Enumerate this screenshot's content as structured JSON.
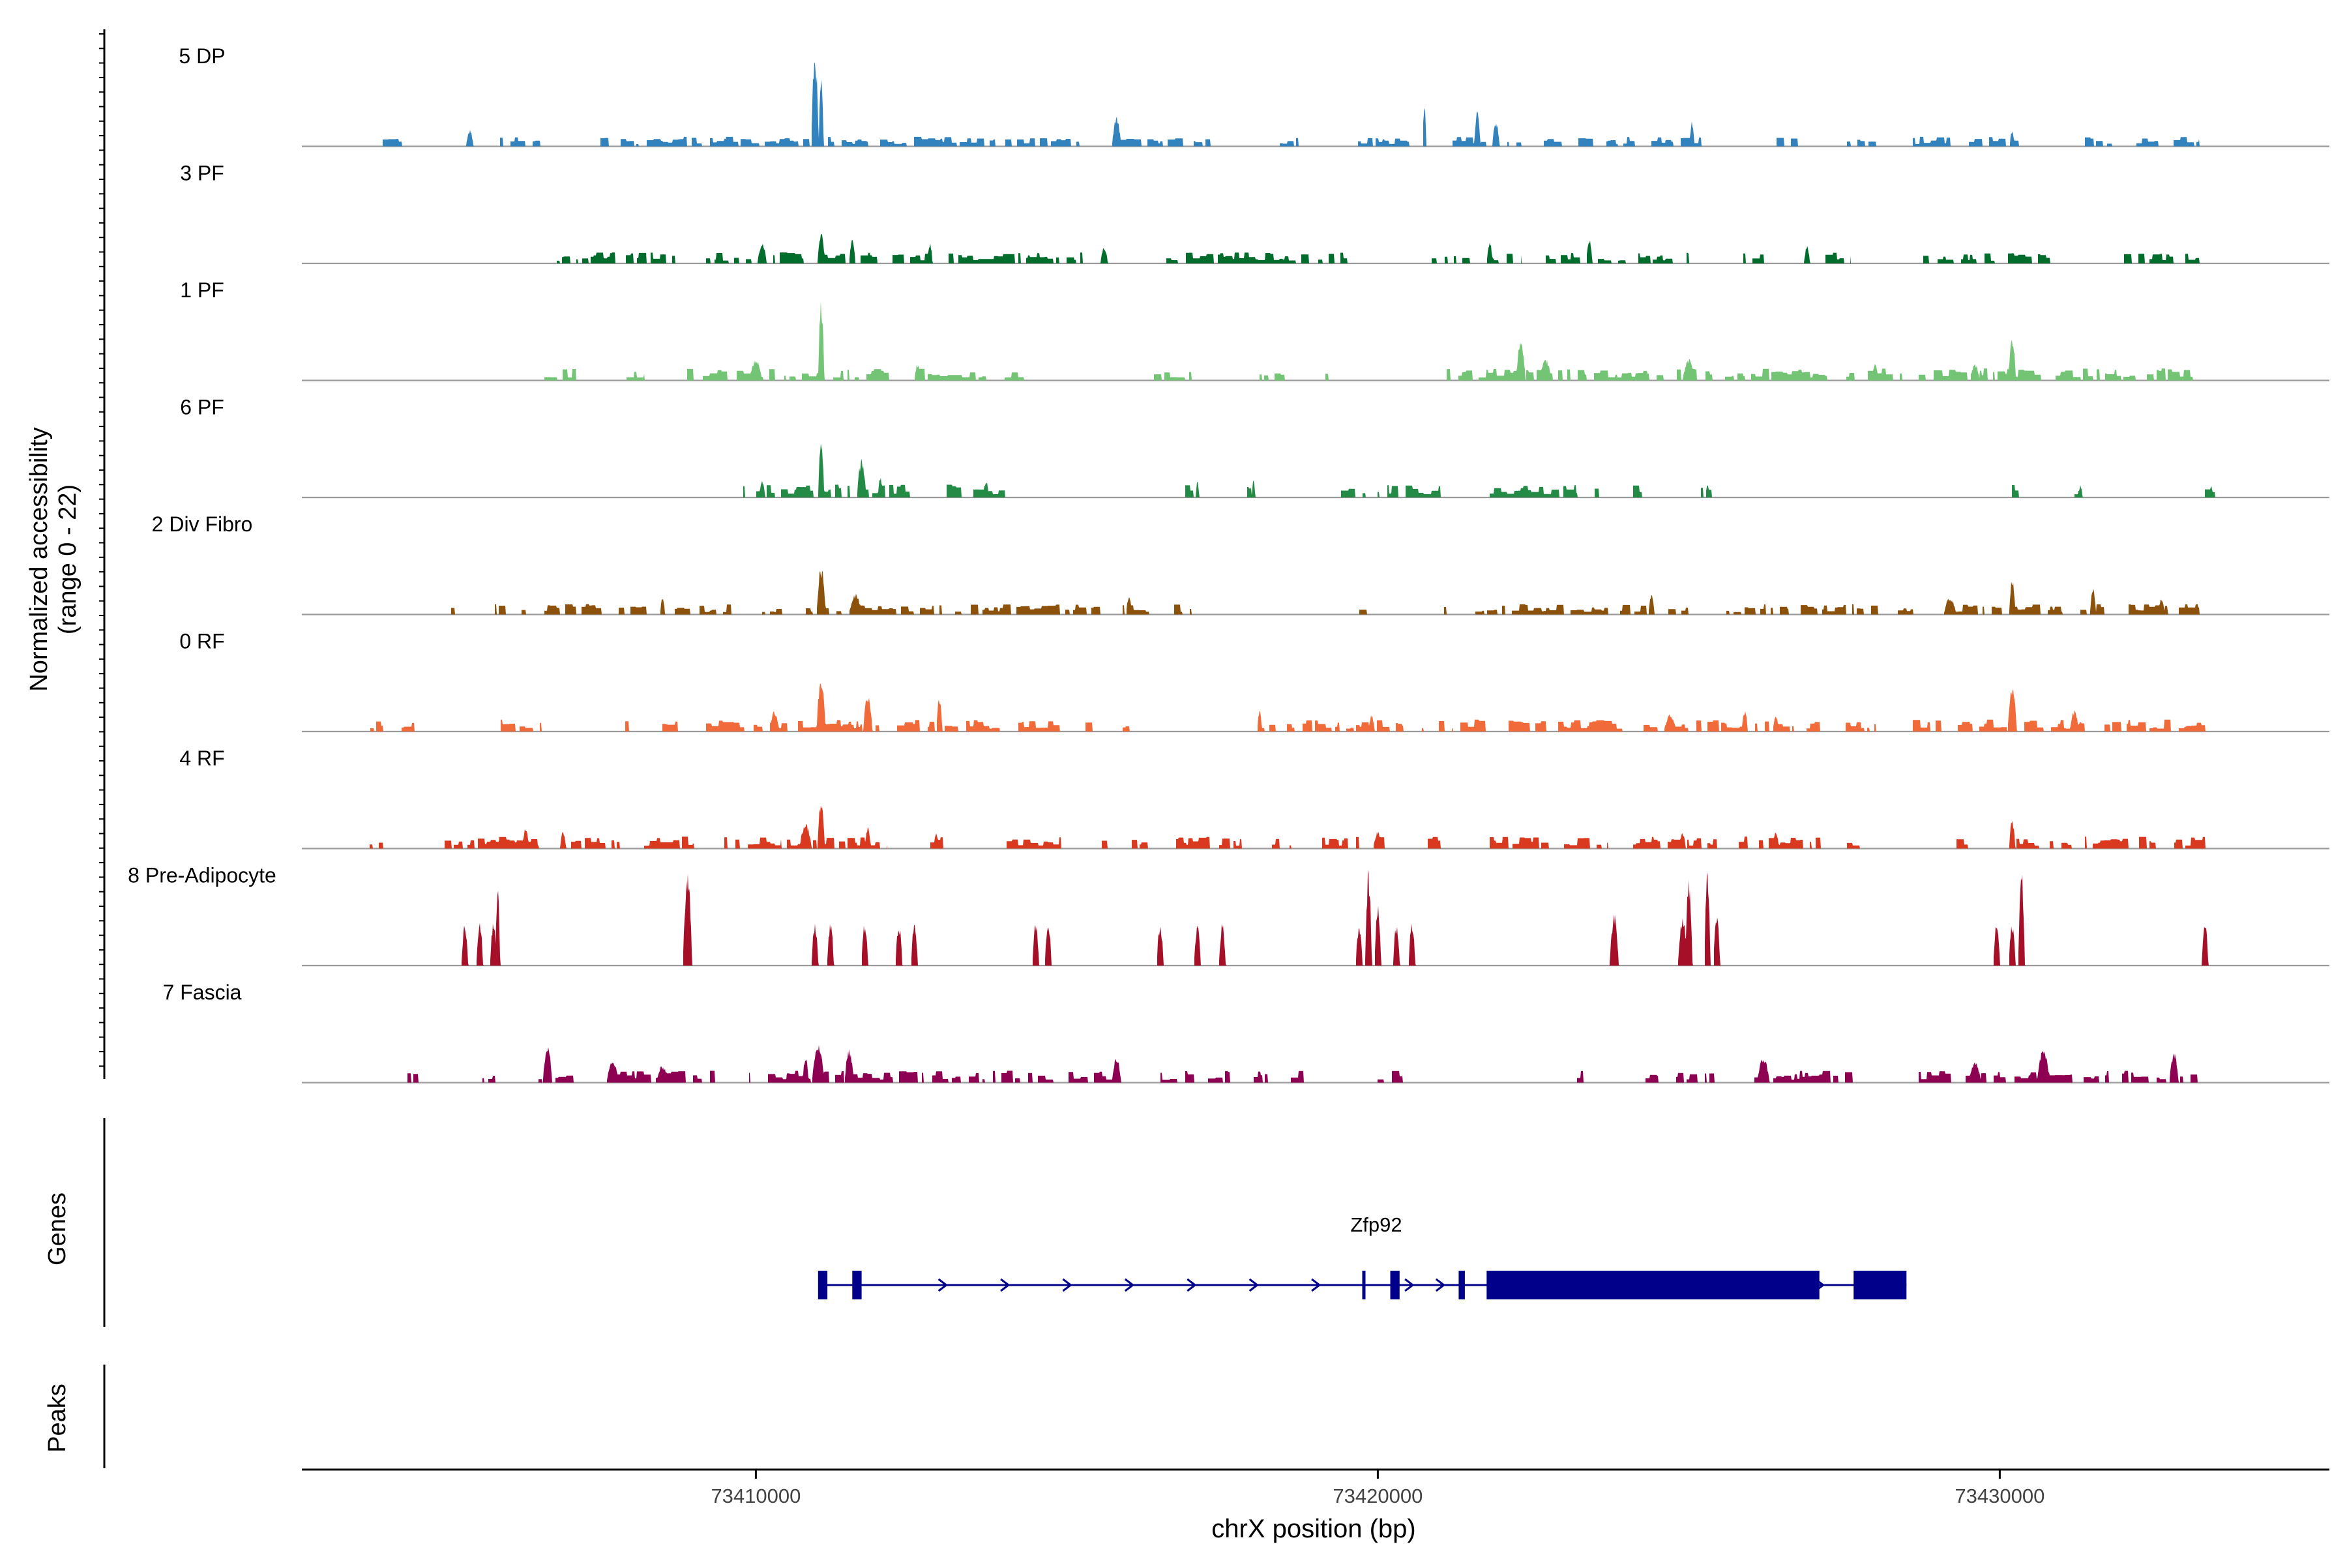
{
  "chart_data": {
    "type": "coverage-track",
    "chromosome": "chrX",
    "xlabel": "chrX position (bp)",
    "ylabel_line1": "Normalized accessibility",
    "ylabel_line2": "(range 0 - 22)",
    "y_range": [
      0,
      22
    ],
    "x_range": [
      73402700,
      73435300
    ],
    "x_ticks": [
      {
        "value": 73410000,
        "label": "73410000"
      },
      {
        "value": 73420000,
        "label": "73420000"
      },
      {
        "value": 73430000,
        "label": "73430000"
      }
    ],
    "gene_panel_label": "Genes",
    "peaks_panel_label": "Peaks",
    "tracks": [
      {
        "name": "5 DP",
        "color": "#3182BD",
        "regions": [
          [
            73404000,
            73404300
          ],
          [
            73405700,
            73406600
          ],
          [
            73407500,
            73411800
          ],
          [
            73412000,
            73415200
          ],
          [
            73415800,
            73417300
          ],
          [
            73418300,
            73418800
          ],
          [
            73419500,
            73420500
          ],
          [
            73421200,
            73422300
          ],
          [
            73422600,
            73424200
          ],
          [
            73424400,
            73425200
          ],
          [
            73426200,
            73426800
          ],
          [
            73427500,
            73428000
          ],
          [
            73428600,
            73429200
          ],
          [
            73429500,
            73430300
          ],
          [
            73431300,
            73431800
          ],
          [
            73432200,
            73433200
          ]
        ],
        "peaks": [
          [
            73410950,
            22,
            120
          ],
          [
            73411050,
            16,
            80
          ],
          [
            73405400,
            4,
            120
          ],
          [
            73420750,
            11,
            60
          ],
          [
            73421600,
            9,
            100
          ],
          [
            73421900,
            6,
            120
          ],
          [
            73415800,
            7,
            150
          ],
          [
            73425050,
            6,
            80
          ],
          [
            73430200,
            4,
            80
          ]
        ],
        "base": 1.2
      },
      {
        "name": "3 PF",
        "color": "#006D2C",
        "regions": [
          [
            73406800,
            73408700
          ],
          [
            73409200,
            73412900
          ],
          [
            73413100,
            73415300
          ],
          [
            73416500,
            73419500
          ],
          [
            73420800,
            73422300
          ],
          [
            73422700,
            73425000
          ],
          [
            73425800,
            73426200
          ],
          [
            73427200,
            73427600
          ],
          [
            73428700,
            73430800
          ],
          [
            73432000,
            73433200
          ]
        ],
        "peaks": [
          [
            73411050,
            7,
            120
          ],
          [
            73411550,
            6,
            100
          ],
          [
            73410100,
            5,
            150
          ],
          [
            73421800,
            5,
            100
          ],
          [
            73423400,
            6,
            100
          ],
          [
            73415600,
            4,
            120
          ],
          [
            73426900,
            4,
            100
          ],
          [
            73430200,
            3,
            100
          ],
          [
            73412800,
            5,
            80
          ]
        ],
        "base": 1.4
      },
      {
        "name": "1 PF",
        "color": "#74C476",
        "regions": [
          [
            73406600,
            73407100
          ],
          [
            73407800,
            73408200
          ],
          [
            73408900,
            73412200
          ],
          [
            73412600,
            73413700
          ],
          [
            73414000,
            73414300
          ],
          [
            73416400,
            73417000
          ],
          [
            73418100,
            73418500
          ],
          [
            73418900,
            73419200
          ],
          [
            73421000,
            73425900
          ],
          [
            73426000,
            73428500
          ],
          [
            73428700,
            73430700
          ],
          [
            73430900,
            73433100
          ]
        ],
        "peaks": [
          [
            73411050,
            19,
            100
          ],
          [
            73410000,
            5,
            200
          ],
          [
            73422300,
            10,
            150
          ],
          [
            73422700,
            5,
            200
          ],
          [
            73425000,
            5,
            200
          ],
          [
            73430200,
            10,
            120
          ],
          [
            73428000,
            4,
            100
          ],
          [
            73429600,
            4,
            150
          ],
          [
            73412600,
            4,
            100
          ]
        ],
        "base": 1.5
      },
      {
        "name": "6 PF",
        "color": "#238B45",
        "regions": [
          [
            73409800,
            73410300
          ],
          [
            73410400,
            73411500
          ],
          [
            73411700,
            73412600
          ],
          [
            73412800,
            73413300
          ],
          [
            73413500,
            73414000
          ],
          [
            73416900,
            73417100
          ],
          [
            73417900,
            73418100
          ],
          [
            73419200,
            73419800
          ],
          [
            73420000,
            73421000
          ],
          [
            73421800,
            73423200
          ],
          [
            73423400,
            73423600
          ],
          [
            73424100,
            73424300
          ],
          [
            73425200,
            73425400
          ],
          [
            73430200,
            73430300
          ],
          [
            73431200,
            73431300
          ],
          [
            73433300,
            73433500
          ]
        ],
        "peaks": [
          [
            73411050,
            13,
            100
          ],
          [
            73410100,
            4,
            100
          ],
          [
            73411700,
            9,
            150
          ],
          [
            73412000,
            5,
            80
          ],
          [
            73413700,
            4,
            100
          ],
          [
            73417100,
            4,
            60
          ],
          [
            73418000,
            4,
            60
          ],
          [
            73431300,
            3,
            60
          ],
          [
            73433400,
            3,
            60
          ],
          [
            73425300,
            3,
            60
          ]
        ],
        "base": 1.6
      },
      {
        "name": "2 Div Fibro",
        "color": "#8C510A",
        "regions": [
          [
            73405100,
            73405200
          ],
          [
            73405800,
            73406300
          ],
          [
            73406600,
            73408300
          ],
          [
            73408700,
            73409600
          ],
          [
            73410100,
            73410500
          ],
          [
            73410800,
            73413000
          ],
          [
            73413200,
            73415600
          ],
          [
            73415900,
            73416400
          ],
          [
            73416600,
            73417000
          ],
          [
            73419700,
            73419900
          ],
          [
            73420900,
            73421100
          ],
          [
            73421400,
            73423700
          ],
          [
            73423900,
            73425000
          ],
          [
            73425600,
            73426600
          ],
          [
            73426800,
            73428100
          ],
          [
            73428300,
            73428600
          ],
          [
            73429200,
            73431000
          ],
          [
            73431300,
            73431700
          ],
          [
            73432000,
            73432700
          ],
          [
            73432800,
            73433200
          ]
        ],
        "peaks": [
          [
            73411050,
            11,
            150
          ],
          [
            73411600,
            5,
            200
          ],
          [
            73416000,
            4,
            100
          ],
          [
            73424400,
            5,
            100
          ],
          [
            73429200,
            4,
            200
          ],
          [
            73430200,
            9,
            100
          ],
          [
            73431500,
            6,
            100
          ],
          [
            73432600,
            4,
            100
          ],
          [
            73408500,
            4,
            80
          ]
        ],
        "base": 1.3
      },
      {
        "name": "0 RF",
        "color": "#F16A3A",
        "regions": [
          [
            73403700,
            73404000
          ],
          [
            73404300,
            73404500
          ],
          [
            73405900,
            73406600
          ],
          [
            73407900,
            73408000
          ],
          [
            73408500,
            73409000
          ],
          [
            73409200,
            73410500
          ],
          [
            73410600,
            73415400
          ],
          [
            73415700,
            73416000
          ],
          [
            73418100,
            73420400
          ],
          [
            73420600,
            73421200
          ],
          [
            73421300,
            73422000
          ],
          [
            73422100,
            73422700
          ],
          [
            73422900,
            73425200
          ],
          [
            73425300,
            73427100
          ],
          [
            73427300,
            73428000
          ],
          [
            73428600,
            73433300
          ]
        ],
        "peaks": [
          [
            73411050,
            13,
            150
          ],
          [
            73411800,
            9,
            150
          ],
          [
            73412950,
            8,
            100
          ],
          [
            73410300,
            5,
            150
          ],
          [
            73418100,
            5,
            80
          ],
          [
            73419900,
            4,
            100
          ],
          [
            73425900,
            5,
            100
          ],
          [
            73426400,
            4,
            100
          ],
          [
            73430200,
            11,
            150
          ],
          [
            73431200,
            5,
            150
          ],
          [
            73424700,
            4,
            200
          ]
        ],
        "base": 1.5
      },
      {
        "name": "4 RF",
        "color": "#D93A1F",
        "regions": [
          [
            73403700,
            73404000
          ],
          [
            73405000,
            73406500
          ],
          [
            73406900,
            73407800
          ],
          [
            73408200,
            73409000
          ],
          [
            73409300,
            73410400
          ],
          [
            73410500,
            73412100
          ],
          [
            73412800,
            73413000
          ],
          [
            73414000,
            73414900
          ],
          [
            73415500,
            73416300
          ],
          [
            73416700,
            73417800
          ],
          [
            73418300,
            73418600
          ],
          [
            73419100,
            73420200
          ],
          [
            73420800,
            73421000
          ],
          [
            73421800,
            73423700
          ],
          [
            73424000,
            73425200
          ],
          [
            73425300,
            73425500
          ],
          [
            73425800,
            73427200
          ],
          [
            73427500,
            73427900
          ],
          [
            73429300,
            73429500
          ],
          [
            73430200,
            73432500
          ],
          [
            73432800,
            73433300
          ]
        ],
        "peaks": [
          [
            73411050,
            12,
            120
          ],
          [
            73410800,
            6,
            200
          ],
          [
            73406300,
            5,
            100
          ],
          [
            73411800,
            5,
            100
          ],
          [
            73412900,
            4,
            80
          ],
          [
            73420000,
            4,
            150
          ],
          [
            73424900,
            4,
            100
          ],
          [
            73426400,
            4,
            100
          ],
          [
            73430200,
            7,
            100
          ],
          [
            73406900,
            4,
            100
          ]
        ],
        "base": 1.5
      },
      {
        "name": "8 Pre-Adipocyte",
        "color": "#A50F28",
        "peaks": [
          [
            73405320,
            10,
            110
          ],
          [
            73405560,
            10,
            110
          ],
          [
            73405780,
            10,
            110
          ],
          [
            73405850,
            18,
            80
          ],
          [
            73408900,
            22,
            150
          ],
          [
            73410950,
            10,
            110
          ],
          [
            73411200,
            10,
            110
          ],
          [
            73411750,
            10,
            110
          ],
          [
            73412300,
            10,
            110
          ],
          [
            73412550,
            10,
            110
          ],
          [
            73414500,
            10,
            110
          ],
          [
            73414700,
            10,
            110
          ],
          [
            73416500,
            10,
            110
          ],
          [
            73417100,
            10,
            110
          ],
          [
            73417500,
            10,
            110
          ],
          [
            73419700,
            10,
            110
          ],
          [
            73419850,
            22,
            110
          ],
          [
            73420000,
            14,
            110
          ],
          [
            73420300,
            10,
            110
          ],
          [
            73420550,
            10,
            110
          ],
          [
            73423800,
            12,
            150
          ],
          [
            73424900,
            12,
            150
          ],
          [
            73425000,
            20,
            120
          ],
          [
            73425300,
            22,
            100
          ],
          [
            73425450,
            12,
            110
          ],
          [
            73429950,
            10,
            110
          ],
          [
            73430200,
            10,
            110
          ],
          [
            73430350,
            22,
            110
          ],
          [
            73433300,
            10,
            110
          ]
        ],
        "base": 0
      },
      {
        "name": "7 Fascia",
        "color": "#8E0152",
        "regions": [
          [
            73404400,
            73404600
          ],
          [
            73405600,
            73405800
          ],
          [
            73406500,
            73407200
          ],
          [
            73407700,
            73409400
          ],
          [
            73409700,
            73409900
          ],
          [
            73410200,
            73412200
          ],
          [
            73412300,
            73415900
          ],
          [
            73416500,
            73417100
          ],
          [
            73417200,
            73417700
          ],
          [
            73418000,
            73418400
          ],
          [
            73418500,
            73418800
          ],
          [
            73420000,
            73420400
          ],
          [
            73423000,
            73423300
          ],
          [
            73424300,
            73424500
          ],
          [
            73424800,
            73425400
          ],
          [
            73425800,
            73427700
          ],
          [
            73428700,
            73432800
          ],
          [
            73432900,
            73433200
          ]
        ],
        "peaks": [
          [
            73406650,
            9,
            150
          ],
          [
            73411000,
            9,
            200
          ],
          [
            73410800,
            6,
            100
          ],
          [
            73411500,
            8,
            150
          ],
          [
            73415800,
            6,
            150
          ],
          [
            73407700,
            5,
            200
          ],
          [
            73426200,
            6,
            200
          ],
          [
            73430700,
            8,
            200
          ],
          [
            73432800,
            7,
            150
          ],
          [
            73429600,
            5,
            200
          ],
          [
            73408500,
            4,
            200
          ]
        ],
        "base": 1.5
      }
    ],
    "gene": {
      "name": "Zfp92",
      "color": "#00008B",
      "line_start": 73411050,
      "line_end": 73428500,
      "strand": "+",
      "exons": [
        [
          73411000,
          73411150
        ],
        [
          73411550,
          73411700
        ],
        [
          73419750,
          73419800
        ],
        [
          73420200,
          73420350
        ],
        [
          73421300,
          73421400
        ],
        [
          73421750,
          73427100
        ],
        [
          73427650,
          73428500
        ]
      ],
      "arrows": [
        73413000,
        73414000,
        73415000,
        73416000,
        73417000,
        73418000,
        73419000,
        73420500,
        73421000,
        73427100
      ]
    }
  }
}
